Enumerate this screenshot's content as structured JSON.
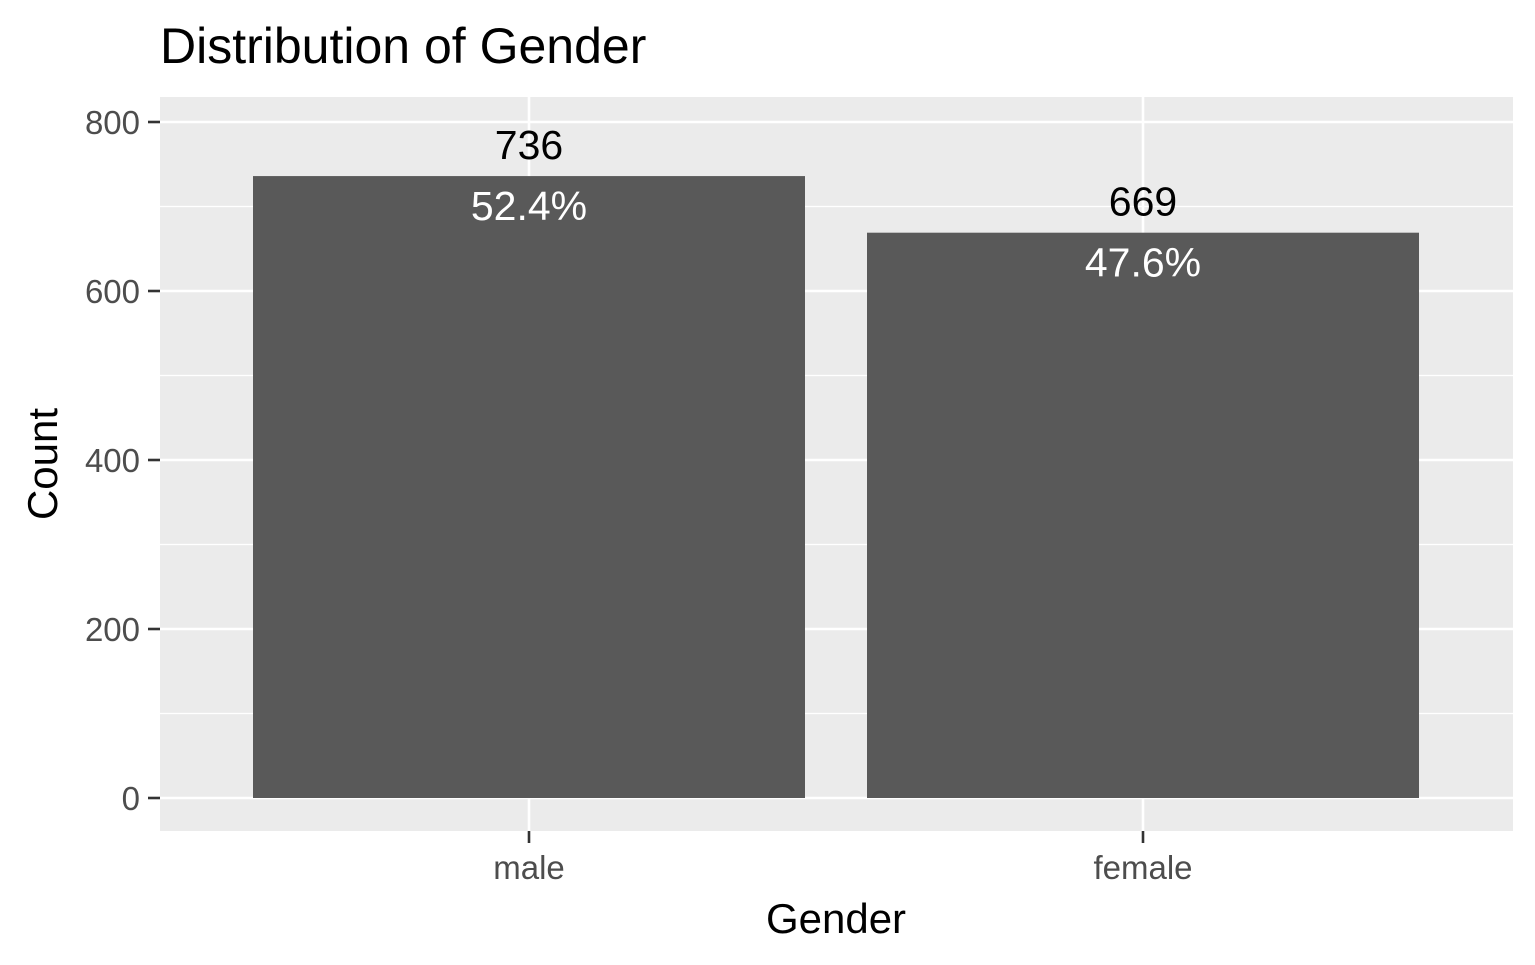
{
  "chart_data": {
    "type": "bar",
    "title": "Distribution of Gender",
    "xlabel": "Gender",
    "ylabel": "Count",
    "categories": [
      "male",
      "female"
    ],
    "values": [
      736,
      669
    ],
    "count_labels": [
      "736",
      "669"
    ],
    "percent_labels": [
      "52.4%",
      "47.6%"
    ],
    "ylim": [
      0,
      800
    ],
    "yticks": [
      0,
      200,
      400,
      600,
      800
    ],
    "ytick_labels": [
      "0",
      "200",
      "400",
      "600",
      "800"
    ],
    "grid": true,
    "legend": "none",
    "colors": {
      "bar": "#595959",
      "panel": "#ebebeb",
      "grid": "#ffffff"
    }
  }
}
